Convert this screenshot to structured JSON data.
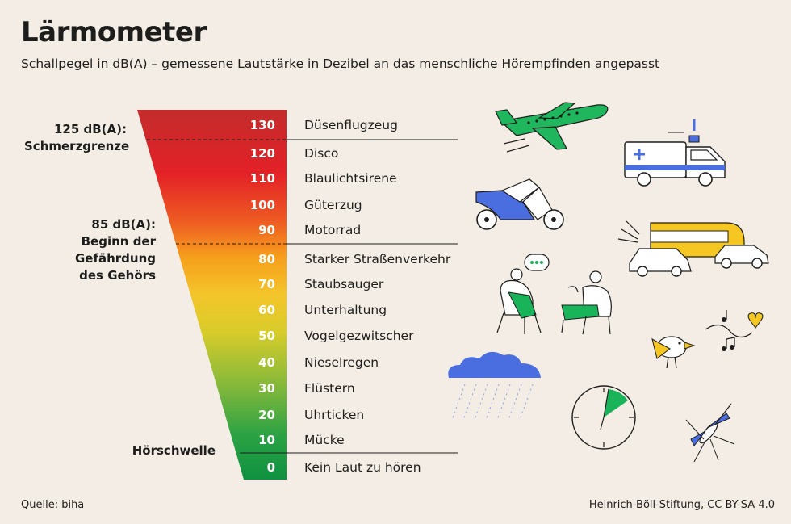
{
  "title": "Lärmometer",
  "subtitle": "Schallpegel in dB(A) – gemessene Lautstärke in Dezibel an das menschliche Hörempfinden angepasst",
  "side_labels": {
    "pain": [
      "125 dB(A):",
      "Schmerzgrenze"
    ],
    "danger": [
      "85 dB(A):",
      "Beginn der",
      "Gefährdung",
      "des Gehörs"
    ],
    "threshold": "Hörschwelle"
  },
  "levels": [
    {
      "db": "130",
      "source": "Düsenflugzeug"
    },
    {
      "db": "120",
      "source": "Disco"
    },
    {
      "db": "110",
      "source": "Blaulichtsirene"
    },
    {
      "db": "100",
      "source": "Güterzug"
    },
    {
      "db": "90",
      "source": "Motorrad"
    },
    {
      "db": "80",
      "source": "Starker Straßenverkehr"
    },
    {
      "db": "70",
      "source": "Staubsauger"
    },
    {
      "db": "60",
      "source": "Unterhaltung"
    },
    {
      "db": "50",
      "source": "Vogelgezwitscher"
    },
    {
      "db": "40",
      "source": "Nieselregen"
    },
    {
      "db": "30",
      "source": "Flüstern"
    },
    {
      "db": "20",
      "source": "Uhrticken"
    },
    {
      "db": "10",
      "source": "Mücke"
    },
    {
      "db": "0",
      "source": "Kein Laut zu hören"
    }
  ],
  "footer": {
    "source": "Quelle: biha",
    "credit": "Heinrich-Böll-Stiftung, CC BY-SA 4.0"
  },
  "colors": {
    "red": "#c8282c",
    "orange": "#f7a21c",
    "yellow": "#f3d52a",
    "green": "#169a45",
    "accent_green": "#19b35a",
    "accent_blue": "#4a6ee0",
    "accent_yellow": "#f6c722"
  }
}
